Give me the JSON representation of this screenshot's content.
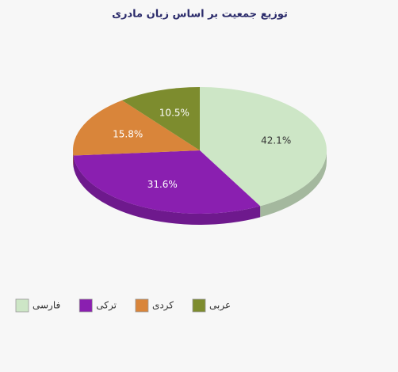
{
  "chart_data": {
    "type": "pie",
    "title": "توزیع جمعیت بر اساس زبان مادری",
    "categories": [
      "فارسی",
      "ترکی",
      "کردی",
      "عربی"
    ],
    "values": [
      42.1,
      31.6,
      15.8,
      10.5
    ],
    "value_labels": [
      "42.1%",
      "31.6%",
      "15.8%",
      "10.5%"
    ],
    "colors": [
      "#cde6c6",
      "#8a1fb0",
      "#d9853a",
      "#7d8c2e"
    ],
    "legend": "bottom-left"
  }
}
